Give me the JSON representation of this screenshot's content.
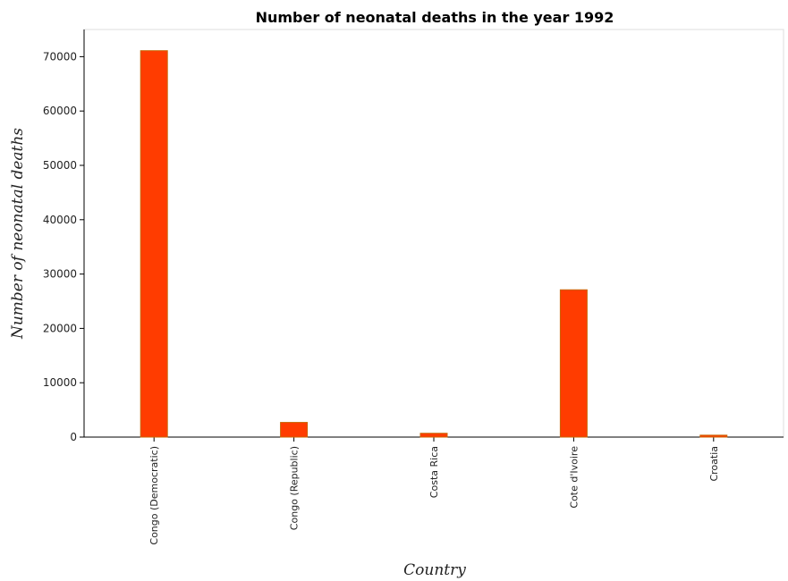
{
  "chart_data": {
    "type": "bar",
    "title": "Number of neonatal deaths in the year 1992",
    "xlabel": "Country",
    "ylabel": "Number of neonatal deaths",
    "categories": [
      "Congo (Democratic)",
      "Congo (Republic)",
      "Costa Rica",
      "Cote d'Ivoire",
      "Croatia"
    ],
    "series": [
      {
        "values": [
          71100,
          2700,
          700,
          27100,
          350
        ]
      }
    ],
    "ylim": [
      0,
      75000
    ],
    "yticks": [
      0,
      10000,
      20000,
      30000,
      40000,
      50000,
      60000,
      70000
    ],
    "ytick_labels": [
      "0",
      "10000",
      "20000",
      "30000",
      "40000",
      "50000",
      "60000",
      "70000"
    ],
    "bar_color": "#ff3c00",
    "bar_edge_color": "#c86400",
    "grid": false,
    "legend": "none"
  }
}
